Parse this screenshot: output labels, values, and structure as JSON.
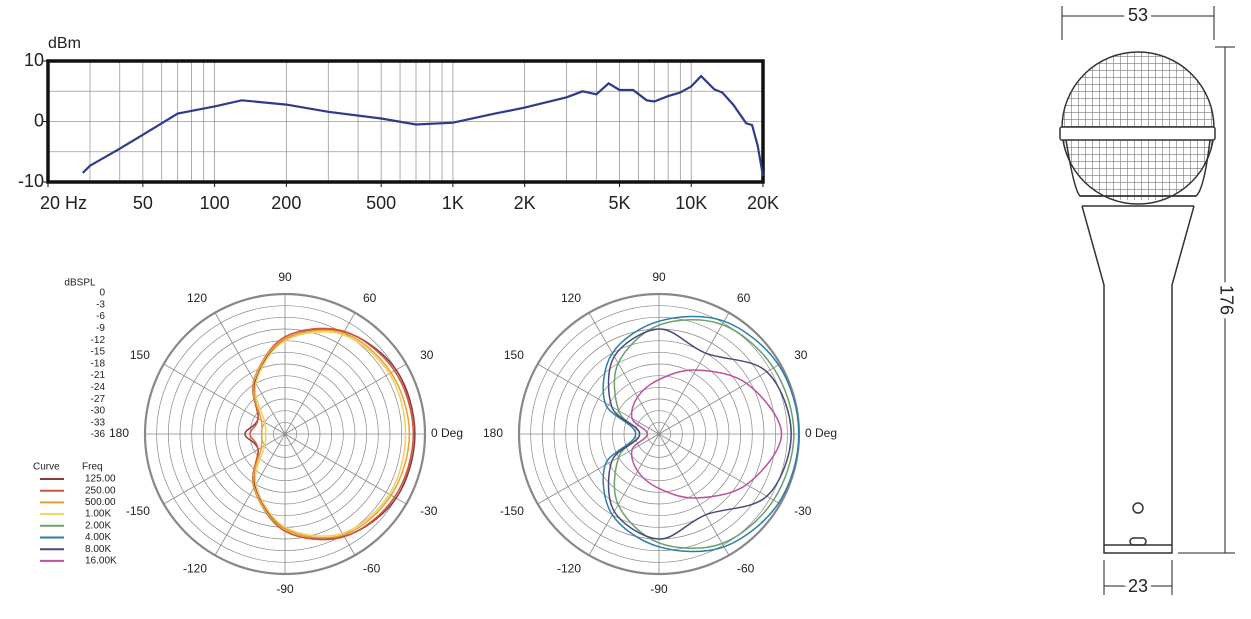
{
  "chart_data": [
    {
      "type": "line",
      "y_label": "dBm",
      "x_log": true,
      "xlim": [
        20,
        20000
      ],
      "ylim": [
        -10,
        10
      ],
      "xticks": [
        {
          "value": 20,
          "label": "20 Hz"
        },
        50,
        100,
        200,
        500,
        {
          "value": 1000,
          "label": "1K"
        },
        {
          "value": 2000,
          "label": "2K"
        },
        {
          "value": 5000,
          "label": "5K"
        },
        {
          "value": 10000,
          "label": "10K"
        },
        {
          "value": 20000,
          "label": "20K"
        }
      ],
      "yticks": [
        -10,
        0,
        10
      ],
      "xgrid": [
        30,
        40,
        50,
        60,
        70,
        80,
        90,
        100,
        200,
        300,
        400,
        500,
        600,
        700,
        800,
        900,
        1000,
        2000,
        3000,
        4000,
        5000,
        6000,
        7000,
        8000,
        9000,
        10000
      ],
      "ygrid": [
        -5,
        0,
        5
      ],
      "color": "#2e3a8c",
      "x": [
        28,
        30,
        40,
        50,
        70,
        100,
        130,
        200,
        300,
        500,
        700,
        1000,
        1500,
        2000,
        3000,
        3500,
        4000,
        4500,
        5000,
        5700,
        6500,
        7000,
        8000,
        9000,
        10000,
        11000,
        12500,
        13500,
        15000,
        17000,
        18000,
        19000,
        20000
      ],
      "values": [
        -8.5,
        -7.3,
        -4.5,
        -2.2,
        1.3,
        2.5,
        3.5,
        2.8,
        1.6,
        0.5,
        -0.5,
        -0.2,
        1.3,
        2.3,
        4,
        5,
        4.5,
        6.3,
        5.2,
        5.2,
        3.5,
        3.3,
        4.2,
        4.8,
        5.8,
        7.5,
        5.3,
        4.8,
        2.8,
        -0.3,
        -0.6,
        -4,
        -9
      ]
    },
    {
      "type": "polar",
      "r_label": "dBSPL",
      "rlim": [
        -36,
        0
      ],
      "rticks": [
        0,
        -3,
        -6,
        -9,
        -12,
        -15,
        -18,
        -21,
        -24,
        -27,
        -30,
        -33,
        -36
      ],
      "theta_ticks": [
        {
          "value": 0,
          "label": "0 Deg"
        },
        30,
        60,
        90,
        120,
        150,
        180,
        -150,
        -120,
        -90,
        -60,
        -30
      ],
      "theta": [
        0,
        30,
        60,
        90,
        120,
        150,
        180,
        210,
        240,
        270,
        300,
        330
      ],
      "legend_headers": [
        "Curve",
        "Freq"
      ],
      "series": [
        {
          "name": "125.00",
          "color": "#8b3a3a",
          "values": [
            -2.6,
            -3,
            -5.6,
            -11.6,
            -20.6,
            -28,
            -25.7,
            -28,
            -20.6,
            -11.6,
            -5.6,
            -3
          ]
        },
        {
          "name": "250.00",
          "color": "#d2553a",
          "values": [
            -3,
            -3.5,
            -5.5,
            -11,
            -20,
            -28,
            -27,
            -28,
            -20,
            -11,
            -5.5,
            -3.5
          ]
        },
        {
          "name": "500.00",
          "color": "#e8a030",
          "values": [
            -4,
            -4.5,
            -6,
            -11.5,
            -20,
            -29,
            -30,
            -29,
            -20,
            -11.5,
            -6,
            -4.5
          ]
        },
        {
          "name": "1.00K",
          "color": "#f0d060",
          "values": [
            -5,
            -5,
            -6.5,
            -12,
            -21,
            -30,
            -31,
            -30,
            -21,
            -12,
            -6.5,
            -5
          ]
        }
      ]
    },
    {
      "type": "polar",
      "rlim": [
        -36,
        0
      ],
      "rgrid": [
        0,
        -3,
        -6,
        -9,
        -12,
        -15,
        -18,
        -21,
        -24,
        -27,
        -30,
        -33
      ],
      "theta_ticks": [
        {
          "value": 0,
          "label": "0 Deg"
        },
        30,
        60,
        90,
        120,
        150,
        180,
        -150,
        -120,
        -90,
        -60,
        -30
      ],
      "theta": [
        0,
        30,
        60,
        90,
        120,
        150,
        180,
        210,
        240,
        270,
        300,
        330
      ],
      "series": [
        {
          "name": "2.00K",
          "color": "#6aa06a",
          "values": [
            -1.3,
            -2,
            -3.5,
            -8,
            -15,
            -24,
            -31,
            -24,
            -15,
            -8,
            -3.5,
            -2
          ]
        },
        {
          "name": "4.00K",
          "color": "#2a7fa8",
          "values": [
            0,
            -0.5,
            -2.5,
            -7,
            -12,
            -20,
            -30,
            -20,
            -12,
            -7,
            -2.5,
            -0.5
          ]
        },
        {
          "name": "8.00K",
          "color": "#4a4a7a",
          "values": [
            -2,
            -4,
            -12,
            -9,
            -13,
            -22,
            -31,
            -22,
            -13,
            -9,
            -12,
            -4
          ]
        },
        {
          "name": "16.00K",
          "color": "#c050a0",
          "values": [
            -4.5,
            -10,
            -17,
            -22,
            -25,
            -28,
            -33,
            -28,
            -25,
            -22,
            -17,
            -10
          ]
        }
      ]
    }
  ],
  "dimensions": {
    "width": 53,
    "length": 176,
    "handle": 23
  }
}
